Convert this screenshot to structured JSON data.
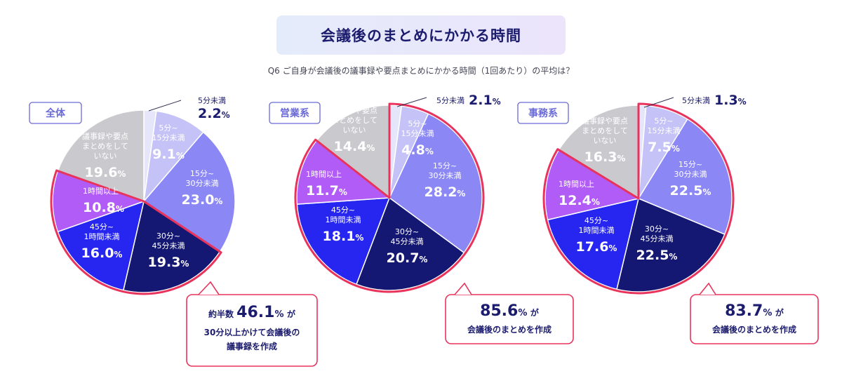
{
  "title": "会議後のまとめにかかる時間",
  "question": "Q6 ご自身が会議後の議事録や要点まとめにかかる時間（1回あたり）の平均は？",
  "colors": {
    "lt5": "#e6e6fa",
    "5to15": "#c4c2f6",
    "15to30": "#8b87f5",
    "30to45": "#141872",
    "45to60": "#2626f0",
    "over60": "#b15cf6",
    "none": "#c9c9ce",
    "highlight": "#e8345c",
    "tag": "#6a6ad8"
  },
  "chart_data": [
    {
      "type": "pie",
      "title": "全体",
      "slices": [
        {
          "label": "5分未満",
          "value": 2.2
        },
        {
          "label": "5分~15分未満",
          "value": 9.1
        },
        {
          "label": "15分~30分未満",
          "value": 23.0
        },
        {
          "label": "30分~45分未満",
          "value": 19.3
        },
        {
          "label": "45分~1時間未満",
          "value": 16.0
        },
        {
          "label": "1時間以上",
          "value": 10.8
        },
        {
          "label": "議事録や要点まとめをしていない",
          "value": 19.6
        }
      ],
      "callout": {
        "pre": "約半数",
        "value": "46.1",
        "unit": "%",
        "post": "が",
        "line2": "30分以上かけて会議後の",
        "line3": "議事録を作成"
      }
    },
    {
      "type": "pie",
      "title": "営業系",
      "slices": [
        {
          "label": "5分未満",
          "value": 2.1
        },
        {
          "label": "5分~15分未満",
          "value": 4.8
        },
        {
          "label": "15分~30分未満",
          "value": 28.2
        },
        {
          "label": "30分~45分未満",
          "value": 20.7
        },
        {
          "label": "45分~1時間未満",
          "value": 18.1
        },
        {
          "label": "1時間以上",
          "value": 11.7
        },
        {
          "label": "議事録や要点まとめをしていない",
          "value": 14.4
        }
      ],
      "callout": {
        "pre": "",
        "value": "85.6",
        "unit": "%",
        "post": "が",
        "line2": "会議後のまとめを作成",
        "line3": ""
      }
    },
    {
      "type": "pie",
      "title": "事務系",
      "slices": [
        {
          "label": "5分未満",
          "value": 1.3
        },
        {
          "label": "5分~15分未満",
          "value": 7.5
        },
        {
          "label": "15分~30分未満",
          "value": 22.5
        },
        {
          "label": "30分~45分未満",
          "value": 22.5
        },
        {
          "label": "45分~1時間未満",
          "value": 17.6
        },
        {
          "label": "1時間以上",
          "value": 12.4
        },
        {
          "label": "議事録や要点まとめをしていない",
          "value": 16.3
        }
      ],
      "callout": {
        "pre": "",
        "value": "83.7",
        "unit": "%",
        "post": "が",
        "line2": "会議後のまとめを作成",
        "line3": ""
      }
    }
  ]
}
